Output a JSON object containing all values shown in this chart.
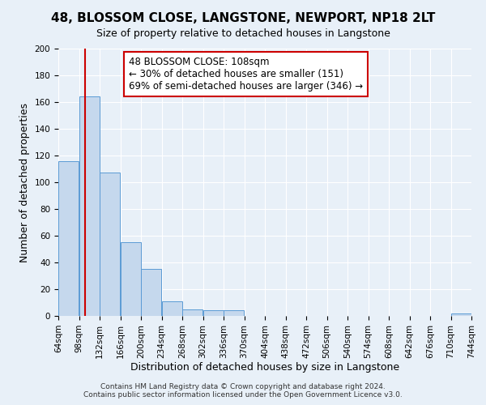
{
  "title": "48, BLOSSOM CLOSE, LANGSTONE, NEWPORT, NP18 2LT",
  "subtitle": "Size of property relative to detached houses in Langstone",
  "xlabel": "Distribution of detached houses by size in Langstone",
  "ylabel": "Number of detached properties",
  "bin_edges": [
    64,
    98,
    132,
    166,
    200,
    234,
    268,
    302,
    336,
    370,
    404,
    438,
    472,
    506,
    540,
    574,
    608,
    642,
    676,
    710,
    744
  ],
  "bin_labels": [
    "64sqm",
    "98sqm",
    "132sqm",
    "166sqm",
    "200sqm",
    "234sqm",
    "268sqm",
    "302sqm",
    "336sqm",
    "370sqm",
    "404sqm",
    "438sqm",
    "472sqm",
    "506sqm",
    "540sqm",
    "574sqm",
    "608sqm",
    "642sqm",
    "676sqm",
    "710sqm",
    "744sqm"
  ],
  "counts": [
    116,
    164,
    107,
    55,
    35,
    11,
    5,
    4,
    4,
    0,
    0,
    0,
    0,
    0,
    0,
    0,
    0,
    0,
    0,
    2
  ],
  "bar_color": "#c5d8ed",
  "bar_edge_color": "#5b9bd5",
  "vline_x": 108,
  "vline_color": "#cc0000",
  "annotation_text": "48 BLOSSOM CLOSE: 108sqm\n← 30% of detached houses are smaller (151)\n69% of semi-detached houses are larger (346) →",
  "annotation_box_color": "white",
  "annotation_box_edge_color": "#cc0000",
  "ylim": [
    0,
    200
  ],
  "yticks": [
    0,
    20,
    40,
    60,
    80,
    100,
    120,
    140,
    160,
    180,
    200
  ],
  "footer_line1": "Contains HM Land Registry data © Crown copyright and database right 2024.",
  "footer_line2": "Contains public sector information licensed under the Open Government Licence v3.0.",
  "background_color": "#e8f0f8",
  "grid_color": "#d0d8e4",
  "title_fontsize": 11,
  "subtitle_fontsize": 9,
  "axis_label_fontsize": 9,
  "tick_fontsize": 7.5,
  "annotation_fontsize": 8.5,
  "footer_fontsize": 6.5
}
